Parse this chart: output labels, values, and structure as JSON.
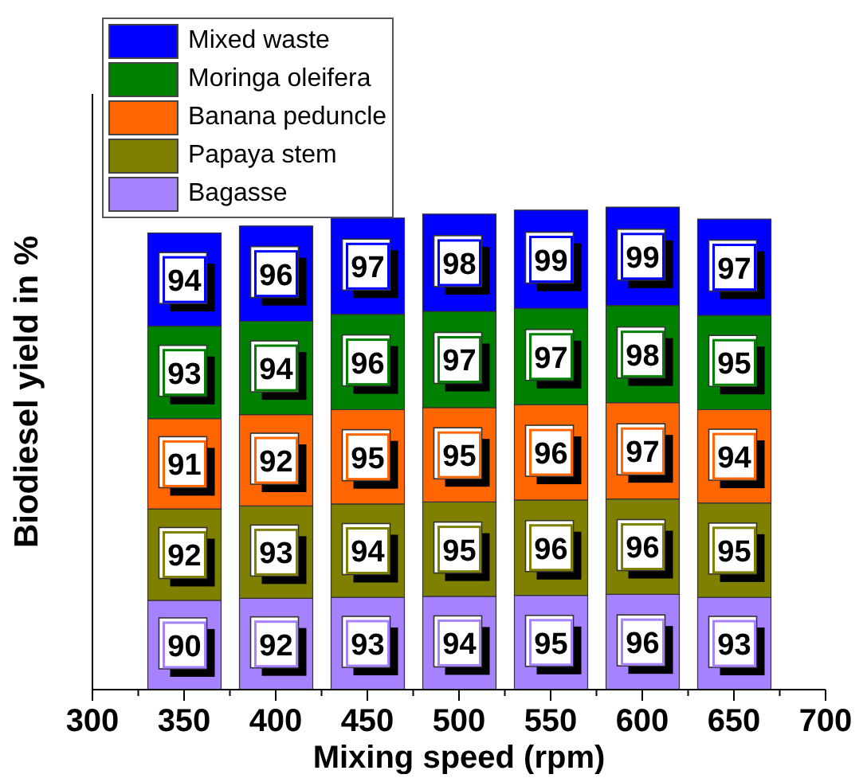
{
  "chart_data": {
    "type": "bar",
    "stacked": true,
    "xlabel": "Mixing speed (rpm)",
    "ylabel": "Biodiesel yield in %",
    "x": [
      350,
      400,
      450,
      500,
      550,
      600,
      650
    ],
    "series": [
      {
        "name": "Bagasse",
        "color": "#a682ff",
        "values": [
          90,
          92,
          93,
          94,
          95,
          96,
          93
        ]
      },
      {
        "name": "Papaya stem",
        "color": "#808000",
        "values": [
          92,
          93,
          94,
          95,
          96,
          96,
          95
        ]
      },
      {
        "name": "Banana peduncle",
        "color": "#ff6600",
        "values": [
          91,
          92,
          95,
          95,
          96,
          97,
          94
        ]
      },
      {
        "name": "Moringa oleifera",
        "color": "#008000",
        "values": [
          93,
          94,
          96,
          97,
          97,
          98,
          95
        ]
      },
      {
        "name": "Mixed waste",
        "color": "#0000ff",
        "values": [
          94,
          96,
          97,
          98,
          99,
          99,
          97
        ]
      }
    ],
    "xlim": [
      300,
      700
    ],
    "xticks": [
      300,
      {
        "value": 325,
        "label": null
      },
      350,
      {
        "value": 375,
        "label": null
      },
      400,
      {
        "value": 425,
        "label": null
      },
      450,
      {
        "value": 475,
        "label": null
      },
      500,
      {
        "value": 525,
        "label": null
      },
      550,
      {
        "value": 575,
        "label": null
      },
      600,
      {
        "value": 625,
        "label": null
      },
      650,
      {
        "value": 675,
        "label": null
      },
      700
    ],
    "ylim": [
      0,
      600
    ],
    "tick_labels": "x",
    "data_labels": true,
    "legend": "top left",
    "grid": false
  }
}
